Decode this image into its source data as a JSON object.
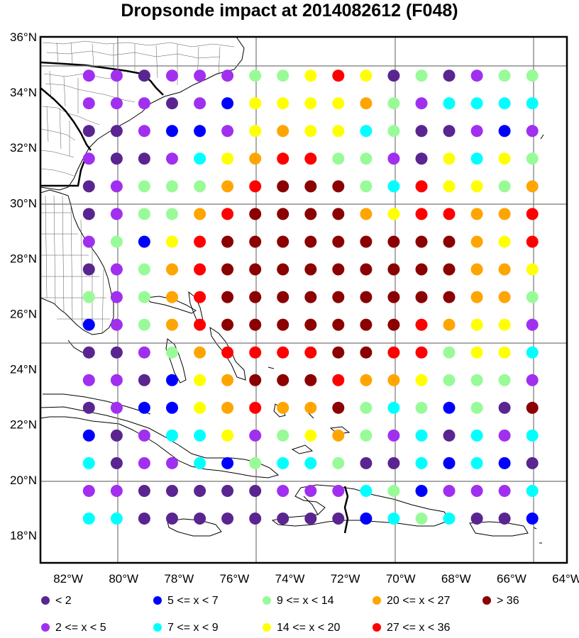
{
  "title": "Dropsonde impact at 2014082612 (F048)",
  "lat_ticks": [
    "36°N",
    "34°N",
    "32°N",
    "30°N",
    "28°N",
    "26°N",
    "24°N",
    "22°N",
    "20°N",
    "18°N"
  ],
  "lon_ticks": [
    "82°W",
    "80°W",
    "78°W",
    "76°W",
    "74°W",
    "72°W",
    "70°W",
    "68°W",
    "66°W",
    "64°W"
  ],
  "legend": [
    {
      "label": "<  2",
      "color": "#5a2591"
    },
    {
      "label": "2 <= x <  5",
      "color": "#a12ff0"
    },
    {
      "label": "5 <= x <  7",
      "color": "#0000ff"
    },
    {
      "label": "7 <= x <  9",
      "color": "#00ffff"
    },
    {
      "label": "9 <= x < 14",
      "color": "#98fb98"
    },
    {
      "label": "14 <= x < 20",
      "color": "#ffff00"
    },
    {
      "label": "20 <= x < 27",
      "color": "#ffa500"
    },
    {
      "label": "27 <= x < 36",
      "color": "#ff0000"
    },
    {
      "label": "> 36",
      "color": "#8b0000"
    }
  ],
  "chart_data": {
    "type": "heatmap",
    "title": "Dropsonde impact at 2014082612 (F048)",
    "lon_range": [
      -83,
      -64
    ],
    "lat_range": [
      17,
      36
    ],
    "lons": [
      -81.25,
      -80.25,
      -79.25,
      -78.25,
      -77.25,
      -76.25,
      -75.25,
      -74.25,
      -73.25,
      -72.25,
      -71.25,
      -70.25,
      -69.25,
      -68.25,
      -67.25,
      -66.25,
      -65.25
    ],
    "lats": [
      34.6,
      33.6,
      32.6,
      31.6,
      30.6,
      29.6,
      28.6,
      27.6,
      26.6,
      25.6,
      24.6,
      23.6,
      22.6,
      21.6,
      20.6,
      19.6,
      18.6
    ],
    "category_codes": {
      "0": "<  2",
      "1": "2 <= x <  5",
      "2": "5 <= x <  7",
      "3": "7 <= x <  9",
      "4": "9 <= x < 14",
      "5": "14 <= x < 20",
      "6": "20 <= x < 27",
      "7": "27 <= x < 36",
      "8": "> 36"
    },
    "rows": [
      [
        1,
        1,
        0,
        1,
        1,
        1,
        4,
        4,
        5,
        7,
        5,
        0,
        4,
        0,
        1,
        4,
        4
      ],
      [
        1,
        1,
        1,
        0,
        1,
        2,
        5,
        5,
        5,
        5,
        6,
        4,
        1,
        3,
        3,
        3,
        3
      ],
      [
        0,
        0,
        1,
        2,
        2,
        1,
        5,
        6,
        5,
        5,
        3,
        4,
        0,
        0,
        1,
        2,
        1
      ],
      [
        1,
        0,
        0,
        1,
        3,
        5,
        6,
        7,
        7,
        4,
        4,
        1,
        0,
        5,
        3,
        5,
        4
      ],
      [
        0,
        1,
        4,
        4,
        4,
        6,
        7,
        8,
        8,
        8,
        4,
        3,
        7,
        5,
        5,
        4,
        6
      ],
      [
        0,
        1,
        4,
        4,
        6,
        7,
        8,
        8,
        8,
        8,
        6,
        5,
        7,
        7,
        6,
        6,
        7
      ],
      [
        1,
        4,
        2,
        5,
        7,
        8,
        8,
        8,
        8,
        8,
        8,
        8,
        8,
        8,
        6,
        5,
        7
      ],
      [
        0,
        1,
        4,
        6,
        7,
        8,
        8,
        8,
        8,
        8,
        8,
        8,
        8,
        8,
        6,
        6,
        5
      ],
      [
        4,
        1,
        4,
        6,
        7,
        8,
        8,
        8,
        8,
        8,
        8,
        8,
        8,
        8,
        6,
        6,
        4
      ],
      [
        2,
        1,
        4,
        6,
        7,
        8,
        8,
        8,
        8,
        8,
        8,
        8,
        7,
        6,
        5,
        5,
        1
      ],
      [
        0,
        0,
        1,
        4,
        6,
        7,
        7,
        7,
        7,
        8,
        8,
        7,
        7,
        4,
        5,
        5,
        3
      ],
      [
        1,
        1,
        0,
        2,
        5,
        6,
        8,
        8,
        8,
        7,
        6,
        6,
        5,
        4,
        4,
        4,
        1
      ],
      [
        0,
        1,
        2,
        2,
        5,
        6,
        7,
        6,
        6,
        8,
        4,
        3,
        4,
        2,
        4,
        0,
        8
      ],
      [
        2,
        0,
        1,
        3,
        3,
        5,
        1,
        4,
        5,
        6,
        4,
        1,
        3,
        0,
        3,
        1,
        3
      ],
      [
        3,
        0,
        1,
        1,
        3,
        2,
        4,
        3,
        3,
        4,
        0,
        0,
        3,
        2,
        3,
        2,
        0
      ],
      [
        1,
        1,
        0,
        0,
        0,
        0,
        0,
        1,
        1,
        1,
        3,
        4,
        2,
        1,
        1,
        1,
        3
      ],
      [
        3,
        3,
        0,
        0,
        0,
        0,
        0,
        0,
        0,
        0,
        2,
        3,
        4,
        3,
        0,
        0,
        2
      ]
    ]
  }
}
